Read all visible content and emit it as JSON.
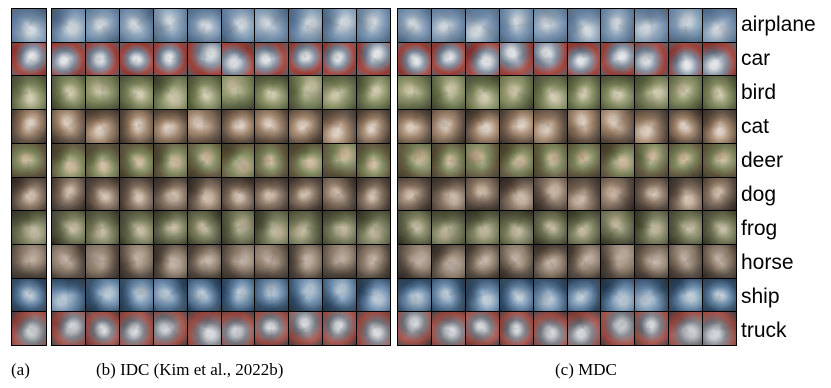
{
  "figure": {
    "class_labels": [
      "airplane",
      "car",
      "bird",
      "cat",
      "deer",
      "dog",
      "frog",
      "horse",
      "ship",
      "truck"
    ],
    "captions": {
      "a": "(a)",
      "b": "(b) IDC (Kim et al., 2022b)",
      "c": "(c) MDC"
    },
    "row_colors": [
      [
        "#8fa6bd",
        "#5f7ea1",
        "#c9d2da",
        "#4e5d6b"
      ],
      [
        "#7d8c9f",
        "#a3392f",
        "#dfe2e6",
        "#515b67"
      ],
      [
        "#8f9669",
        "#5b6540",
        "#c7c0a0",
        "#3f3a2f"
      ],
      [
        "#a4866c",
        "#5b4a3c",
        "#d8c7b7",
        "#2f2823"
      ],
      [
        "#7f8a5c",
        "#5e5338",
        "#c5b08f",
        "#3f3b2c"
      ],
      [
        "#8c7663",
        "#4f4137",
        "#c9b4a0",
        "#2a2520"
      ],
      [
        "#7f8360",
        "#4f5237",
        "#b8ae91",
        "#2e2c24"
      ],
      [
        "#92806d",
        "#4e4238",
        "#b9a89a",
        "#2e2825"
      ],
      [
        "#6d8fb0",
        "#2f4d6b",
        "#b3c4d3",
        "#283540"
      ],
      [
        "#7b7f88",
        "#a4493f",
        "#d1d4d8",
        "#3b3e45"
      ]
    ]
  }
}
